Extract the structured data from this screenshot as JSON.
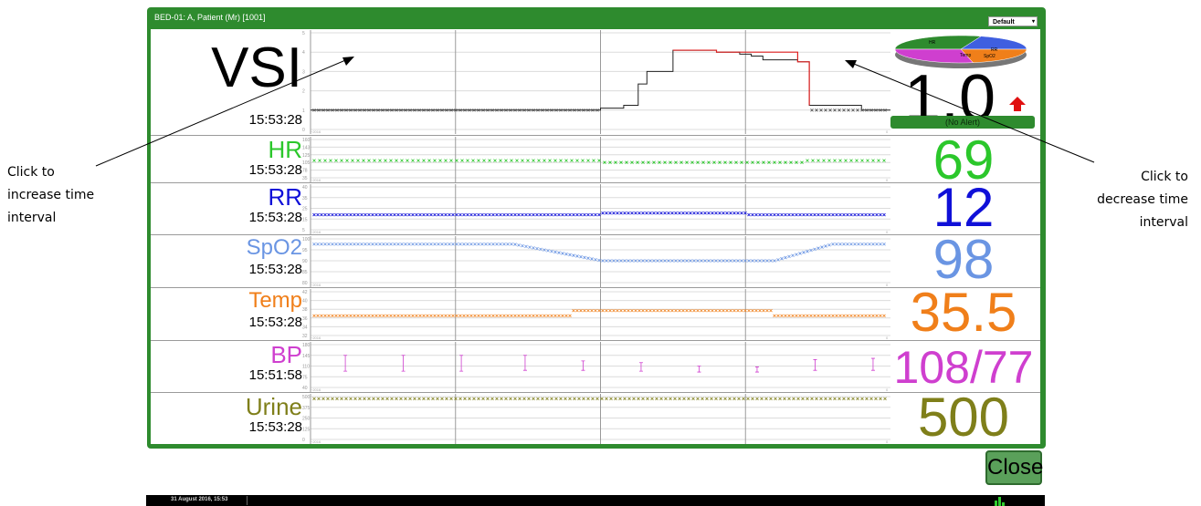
{
  "annotations": {
    "left": [
      "Click to",
      "increase time",
      "interval"
    ],
    "right": [
      "Click to",
      "decrease time",
      "interval"
    ]
  },
  "window": {
    "tab_title": "BED-01: A, Patient (Mr) [1001]",
    "profile": "Default"
  },
  "vsi": {
    "label": "VSI",
    "time": "15:53:28",
    "value": "1.0",
    "alert": "(No Alert)",
    "pie_labels": [
      "HR",
      "RR",
      "SpO2",
      "Temp"
    ],
    "axis_ticks": [
      "5",
      "4",
      "3",
      "2",
      "1",
      "0"
    ],
    "start_label": "~2016",
    "end_label": "0"
  },
  "vitals": [
    {
      "id": "hr",
      "label": "HR",
      "time": "15:53:28",
      "value": "69",
      "color": "#2bc72b",
      "ticks": [
        "160",
        "143",
        "125",
        "105",
        "78",
        "35"
      ],
      "start_label": "~2016",
      "end_label": "0"
    },
    {
      "id": "rr",
      "label": "RR",
      "time": "15:53:28",
      "value": "12",
      "color": "#1010d8",
      "ticks": [
        "40",
        "35",
        "25",
        "15",
        "5"
      ],
      "start_label": "~2016",
      "end_label": "0"
    },
    {
      "id": "spo2",
      "label": "SpO2",
      "time": "15:53:28",
      "value": "98",
      "color": "#6a95e3",
      "ticks": [
        "100",
        "95",
        "90",
        "85",
        "80"
      ],
      "start_label": "~2016",
      "end_label": "0"
    },
    {
      "id": "temp",
      "label": "Temp",
      "time": "15:53:28",
      "value": "35.5",
      "color": "#f07f1a",
      "ticks": [
        "42",
        "40",
        "38",
        "36",
        "34",
        "32"
      ],
      "start_label": "~2016",
      "end_label": "0"
    },
    {
      "id": "bp",
      "label": "BP",
      "time": "15:51:58",
      "value": "108/77",
      "color": "#cf3fcf",
      "ticks": [
        "180",
        "145",
        "110",
        "75",
        "40"
      ],
      "start_label": "~2016",
      "end_label": "0"
    },
    {
      "id": "urine",
      "label": "Urine",
      "time": "15:53:28",
      "value": "500",
      "color": "#7f7f1a",
      "ticks": [
        "500",
        "375",
        "250",
        "125",
        "0"
      ],
      "start_label": "~2016",
      "end_label": "0"
    }
  ],
  "close_label": "Close",
  "status_bar": {
    "datetime": "31 August 2016, 15:53"
  }
}
